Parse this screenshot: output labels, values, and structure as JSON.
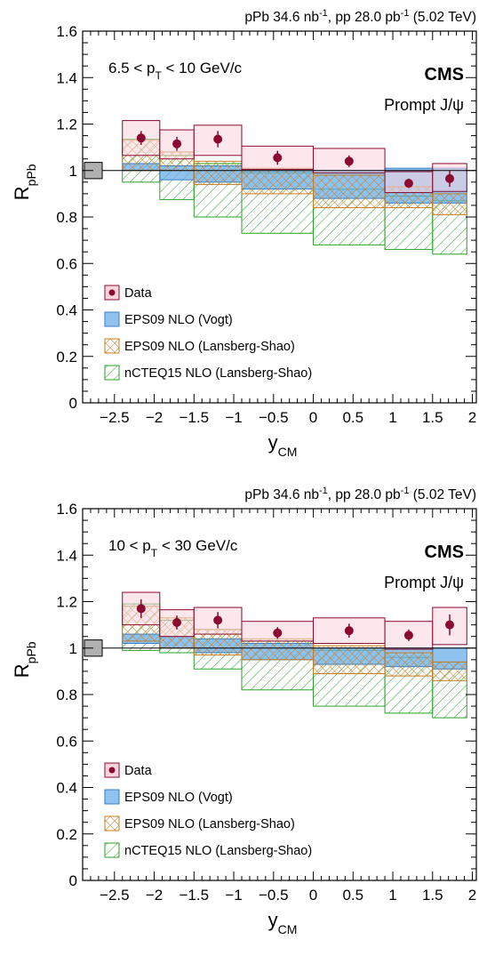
{
  "chart_data": [
    {
      "type": "bar",
      "energy_label": [
        "pPb 34.6 nb",
        "-1",
        ", pp 28.0 pb",
        "-1",
        " (5.02 TeV)"
      ],
      "experiment": "CMS",
      "particle": "Prompt J/ψ",
      "pt_range": [
        "6.5 < p",
        "T",
        " < 10 GeV/c"
      ],
      "xlabel": [
        "y",
        "CM"
      ],
      "ylabel": [
        "R",
        "pPb"
      ],
      "xlim": [
        -2.9,
        2.05
      ],
      "ylim": [
        0,
        1.6
      ],
      "x_ticks": [
        -2.5,
        -2,
        -1.5,
        -1,
        -0.5,
        0,
        0.5,
        1,
        1.5,
        2
      ],
      "x_tick_labels": [
        "−2.5",
        "−2",
        "−1.5",
        "−1",
        "−0.5",
        "0",
        "0.5",
        "1",
        "1.5",
        "2"
      ],
      "y_ticks": [
        0,
        0.2,
        0.4,
        0.6,
        0.8,
        1,
        1.2,
        1.4,
        1.6
      ],
      "y_tick_labels": [
        "0",
        "0.2",
        "0.4",
        "0.6",
        "0.8",
        "1",
        "1.2",
        "1.4",
        "1.6"
      ],
      "global_uncertainty": [
        0.965,
        1.035
      ],
      "legend": [
        "Data",
        "EPS09 NLO (Vogt)",
        "EPS09 NLO (Lansberg-Shao)",
        "nCTEQ15 NLO (Lansberg-Shao)"
      ],
      "legend_position": "bottom-left",
      "colors": {
        "data": "#8b0a2f",
        "data_box": "#f9d5dc",
        "vogt": "#6aaee8",
        "lansberg": "#c87c1e",
        "ncteq": "#2aa02a"
      },
      "series": [
        {
          "name": "Data",
          "bins": [
            [
              -2.4,
              -1.93
            ],
            [
              -1.93,
              -1.5
            ],
            [
              -1.5,
              -0.9
            ],
            [
              -0.9,
              0
            ],
            [
              0,
              0.9
            ],
            [
              0.9,
              1.5
            ],
            [
              1.5,
              1.93
            ]
          ],
          "values": [
            1.14,
            1.115,
            1.135,
            1.055,
            1.04,
            0.945,
            0.965
          ],
          "stat_err": [
            0.03,
            0.03,
            0.035,
            0.03,
            0.025,
            0.02,
            0.035
          ],
          "sys_low": [
            1.065,
            1.05,
            1.065,
            1.005,
            0.99,
            0.905,
            0.91
          ],
          "sys_high": [
            1.215,
            1.175,
            1.195,
            1.105,
            1.095,
            0.995,
            1.03
          ]
        },
        {
          "name": "EPS09 NLO (Vogt)",
          "bins": [
            [
              -2.4,
              -1.93
            ],
            [
              -1.93,
              -1.5
            ],
            [
              -1.5,
              -0.9
            ],
            [
              -0.9,
              0
            ],
            [
              0,
              0.9
            ],
            [
              0.9,
              1.5
            ],
            [
              1.5,
              1.93
            ]
          ],
          "low": [
            1.0,
            0.96,
            0.95,
            0.92,
            0.88,
            0.86,
            0.86
          ],
          "high": [
            1.03,
            1.02,
            1.02,
            1.0,
            1.0,
            1.01,
            1.01
          ]
        },
        {
          "name": "EPS09 NLO (Lansberg-Shao)",
          "bins": [
            [
              -2.4,
              -1.93
            ],
            [
              -1.93,
              -1.5
            ],
            [
              -1.5,
              -0.9
            ],
            [
              -0.9,
              0
            ],
            [
              0,
              0.9
            ],
            [
              0.9,
              1.5
            ],
            [
              1.5,
              1.93
            ]
          ],
          "low": [
            1.0,
            1.0,
            0.94,
            0.9,
            0.84,
            0.84,
            0.81
          ],
          "high": [
            1.13,
            1.08,
            1.04,
            1.01,
            0.98,
            0.93,
            0.9
          ]
        },
        {
          "name": "nCTEQ15 NLO (Lansberg-Shao)",
          "bins": [
            [
              -2.4,
              -1.93
            ],
            [
              -1.93,
              -1.5
            ],
            [
              -1.5,
              -0.9
            ],
            [
              -0.9,
              0
            ],
            [
              0,
              0.9
            ],
            [
              0.9,
              1.5
            ],
            [
              1.5,
              1.93
            ]
          ],
          "low": [
            0.95,
            0.875,
            0.8,
            0.73,
            0.68,
            0.66,
            0.64
          ],
          "high": [
            1.135,
            1.065,
            1.03,
            0.99,
            0.92,
            0.89,
            0.87
          ]
        }
      ]
    },
    {
      "type": "bar",
      "energy_label": [
        "pPb 34.6 nb",
        "-1",
        ", pp 28.0 pb",
        "-1",
        " (5.02 TeV)"
      ],
      "experiment": "CMS",
      "particle": "Prompt J/ψ",
      "pt_range": [
        "10 < p",
        "T",
        " < 30 GeV/c"
      ],
      "xlabel": [
        "y",
        "CM"
      ],
      "ylabel": [
        "R",
        "pPb"
      ],
      "xlim": [
        -2.9,
        2.05
      ],
      "ylim": [
        0,
        1.6
      ],
      "x_ticks": [
        -2.5,
        -2,
        -1.5,
        -1,
        -0.5,
        0,
        0.5,
        1,
        1.5,
        2
      ],
      "x_tick_labels": [
        "−2.5",
        "−2",
        "−1.5",
        "−1",
        "−0.5",
        "0",
        "0.5",
        "1",
        "1.5",
        "2"
      ],
      "y_ticks": [
        0,
        0.2,
        0.4,
        0.6,
        0.8,
        1,
        1.2,
        1.4,
        1.6
      ],
      "y_tick_labels": [
        "0",
        "0.2",
        "0.4",
        "0.6",
        "0.8",
        "1",
        "1.2",
        "1.4",
        "1.6"
      ],
      "global_uncertainty": [
        0.965,
        1.035
      ],
      "legend": [
        "Data",
        "EPS09 NLO (Vogt)",
        "EPS09 NLO (Lansberg-Shao)",
        "nCTEQ15 NLO (Lansberg-Shao)"
      ],
      "legend_position": "bottom-left",
      "colors": {
        "data": "#8b0a2f",
        "data_box": "#f9d5dc",
        "vogt": "#6aaee8",
        "lansberg": "#c87c1e",
        "ncteq": "#2aa02a"
      },
      "series": [
        {
          "name": "Data",
          "bins": [
            [
              -2.4,
              -1.93
            ],
            [
              -1.93,
              -1.5
            ],
            [
              -1.5,
              -0.9
            ],
            [
              -0.9,
              0
            ],
            [
              0,
              0.9
            ],
            [
              0.9,
              1.5
            ],
            [
              1.5,
              1.93
            ]
          ],
          "values": [
            1.17,
            1.11,
            1.12,
            1.065,
            1.075,
            1.055,
            1.1
          ],
          "stat_err": [
            0.04,
            0.03,
            0.035,
            0.025,
            0.03,
            0.025,
            0.045
          ],
          "sys_low": [
            1.1,
            1.05,
            1.06,
            1.03,
            1.02,
            0.995,
            1.015
          ],
          "sys_high": [
            1.24,
            1.165,
            1.175,
            1.115,
            1.13,
            1.115,
            1.175
          ]
        },
        {
          "name": "EPS09 NLO (Vogt)",
          "bins": [
            [
              -2.4,
              -1.93
            ],
            [
              -1.93,
              -1.5
            ],
            [
              -1.5,
              -0.9
            ],
            [
              -0.9,
              0
            ],
            [
              0,
              0.9
            ],
            [
              0.9,
              1.5
            ],
            [
              1.5,
              1.93
            ]
          ],
          "low": [
            1.02,
            1.0,
            0.98,
            0.95,
            0.93,
            0.92,
            0.91
          ],
          "high": [
            1.06,
            1.05,
            1.04,
            1.02,
            1.0,
            1.0,
            1.0
          ]
        },
        {
          "name": "EPS09 NLO (Lansberg-Shao)",
          "bins": [
            [
              -2.4,
              -1.93
            ],
            [
              -1.93,
              -1.5
            ],
            [
              -1.5,
              -0.9
            ],
            [
              -0.9,
              0
            ],
            [
              0,
              0.9
            ],
            [
              0.9,
              1.5
            ],
            [
              1.5,
              1.93
            ]
          ],
          "low": [
            1.03,
            1.0,
            0.97,
            0.95,
            0.89,
            0.88,
            0.86
          ],
          "high": [
            1.18,
            1.13,
            1.08,
            1.04,
            1.01,
            0.98,
            0.94
          ]
        },
        {
          "name": "nCTEQ15 NLO (Lansberg-Shao)",
          "bins": [
            [
              -2.4,
              -1.93
            ],
            [
              -1.93,
              -1.5
            ],
            [
              -1.5,
              -0.9
            ],
            [
              -0.9,
              0
            ],
            [
              0,
              0.9
            ],
            [
              0.9,
              1.5
            ],
            [
              1.5,
              1.93
            ]
          ],
          "low": [
            0.99,
            0.98,
            0.91,
            0.82,
            0.75,
            0.72,
            0.7
          ],
          "high": [
            1.19,
            1.12,
            1.08,
            1.03,
            0.99,
            0.96,
            0.94
          ]
        }
      ]
    }
  ]
}
